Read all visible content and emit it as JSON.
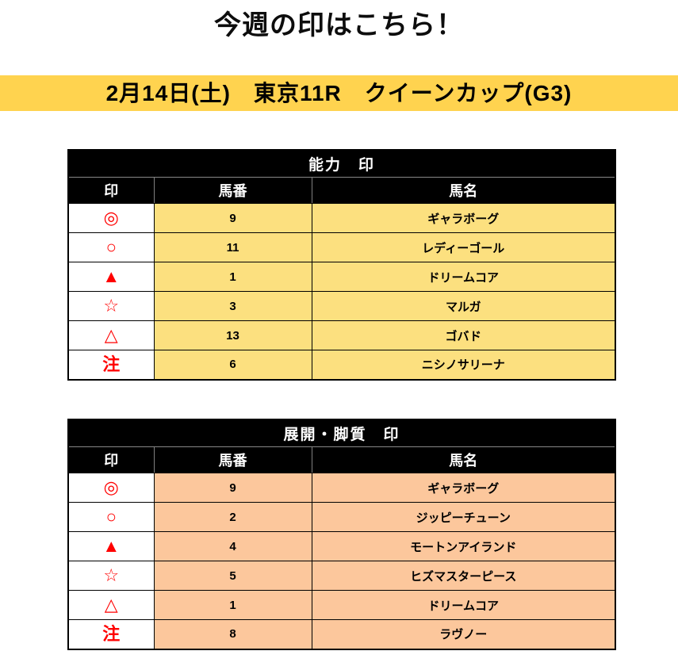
{
  "title": "今週の印はこちら！",
  "banner": {
    "text": "2月14日(土)　東京11R　クイーンカップ(G3)"
  },
  "columns": {
    "mark": "印",
    "number": "馬番",
    "name": "馬名"
  },
  "tables": [
    {
      "title": "能力　印",
      "rows": [
        {
          "mark": "◎",
          "number": "9",
          "name": "ギャラボーグ"
        },
        {
          "mark": "○",
          "number": "11",
          "name": "レディーゴール"
        },
        {
          "mark": "▲",
          "number": "1",
          "name": "ドリームコア"
        },
        {
          "mark": "☆",
          "number": "3",
          "name": "マルガ"
        },
        {
          "mark": "△",
          "number": "13",
          "name": "ゴバド"
        },
        {
          "mark": "注",
          "number": "6",
          "name": "ニシノサリーナ"
        }
      ]
    },
    {
      "title": "展開・脚質　印",
      "rows": [
        {
          "mark": "◎",
          "number": "9",
          "name": "ギャラボーグ"
        },
        {
          "mark": "○",
          "number": "2",
          "name": "ジッピーチューン"
        },
        {
          "mark": "▲",
          "number": "4",
          "name": "モートンアイランド"
        },
        {
          "mark": "☆",
          "number": "5",
          "name": "ヒズマスターピース"
        },
        {
          "mark": "△",
          "number": "1",
          "name": "ドリームコア"
        },
        {
          "mark": "注",
          "number": "8",
          "name": "ラヴノー"
        }
      ]
    }
  ],
  "colors": {
    "banner_bg": "#FFD34F",
    "table1_row_bg": "#FCE07F",
    "table2_row_bg": "#FCC79C",
    "header_bg": "#000000",
    "mark_color": "#FF0000"
  }
}
